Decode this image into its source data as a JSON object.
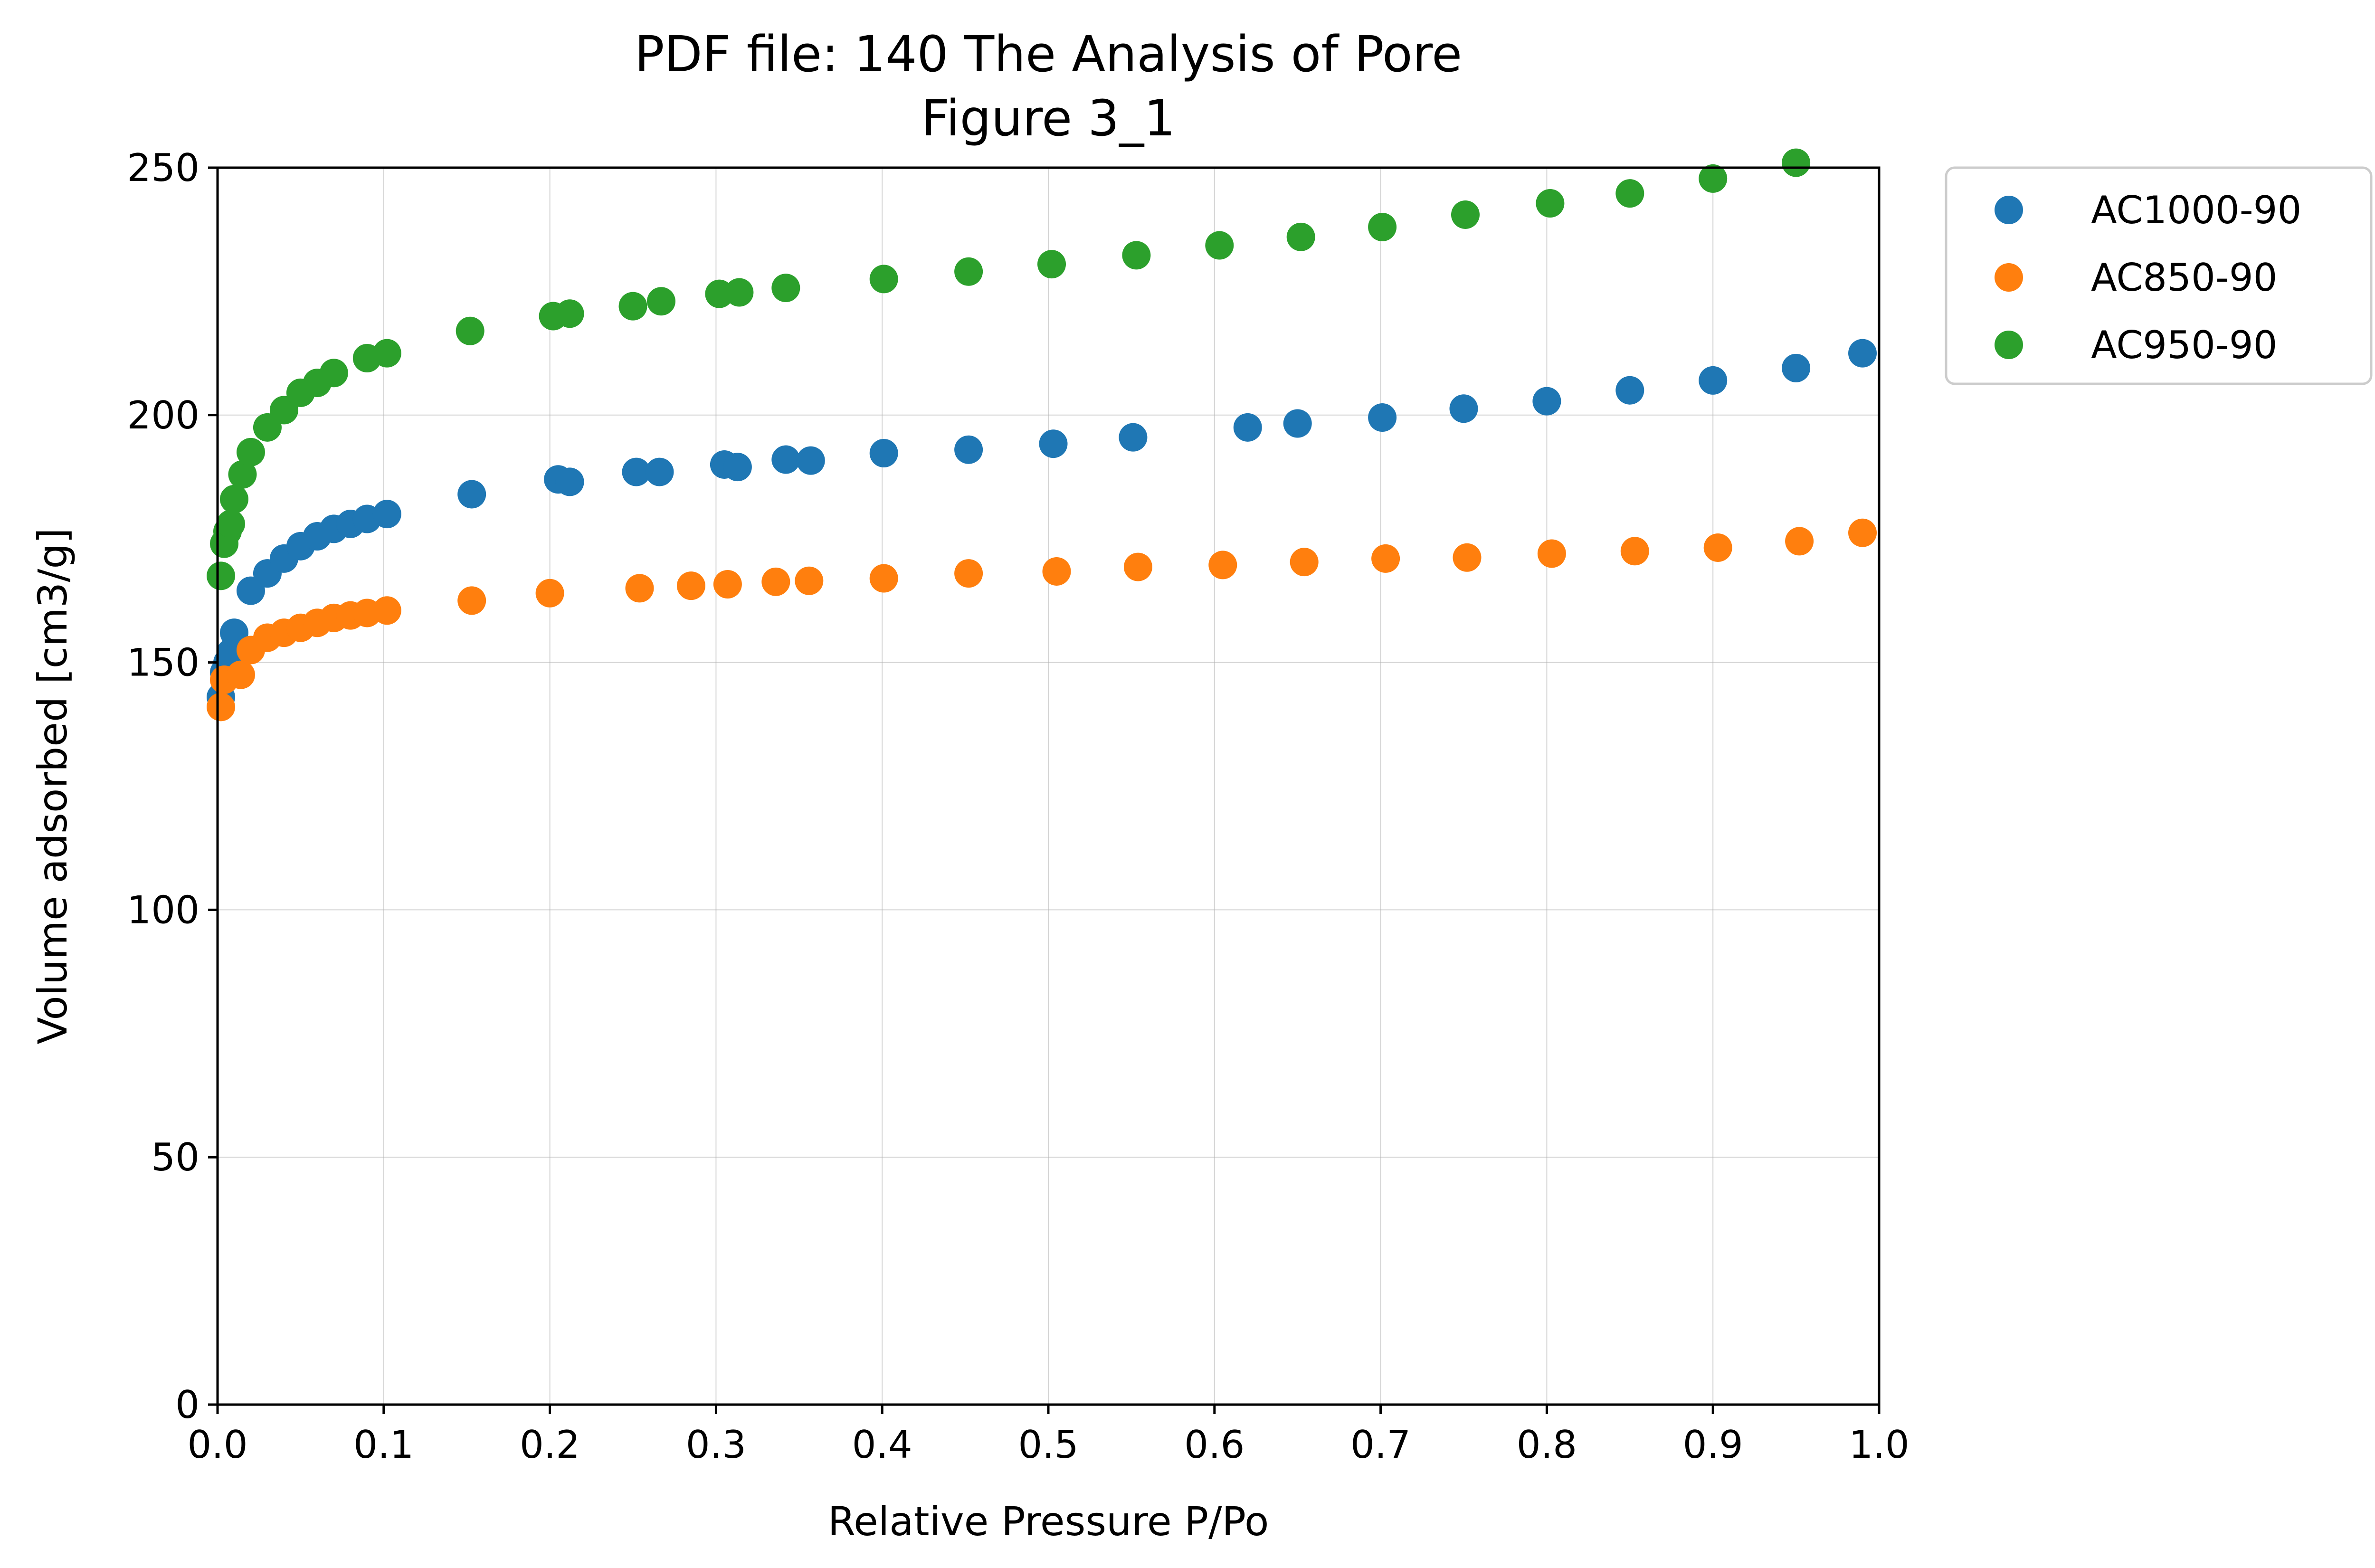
{
  "chart_data": {
    "type": "scatter",
    "title": "PDF file: 140 The Analysis of Pore",
    "subtitle": "Figure 3_1",
    "xlabel": "Relative Pressure P/Po",
    "ylabel": "Volume adsorbed [cm3/g]",
    "xlim": [
      0.0,
      1.0
    ],
    "ylim": [
      0,
      250
    ],
    "xticks": [
      "0.0",
      "0.1",
      "0.2",
      "0.3",
      "0.4",
      "0.5",
      "0.6",
      "0.7",
      "0.8",
      "0.9",
      "1.0"
    ],
    "yticks": [
      "0",
      "50",
      "100",
      "150",
      "200",
      "250"
    ],
    "grid": true,
    "legend_position": "outside-top-right",
    "series": [
      {
        "name": "AC1000-90",
        "color": "#1f77b4",
        "x": [
          0.002,
          0.004,
          0.006,
          0.008,
          0.01,
          0.02,
          0.03,
          0.04,
          0.05,
          0.06,
          0.07,
          0.08,
          0.09,
          0.102,
          0.153,
          0.205,
          0.212,
          0.252,
          0.266,
          0.305,
          0.313,
          0.342,
          0.357,
          0.401,
          0.452,
          0.503,
          0.551,
          0.62,
          0.65,
          0.701,
          0.75,
          0.8,
          0.85,
          0.9,
          0.95,
          0.99
        ],
        "y": [
          143,
          148,
          150,
          152,
          156,
          164.5,
          168,
          171,
          173.5,
          175.5,
          177,
          178,
          179,
          180,
          184,
          187,
          186.5,
          188.5,
          188.5,
          190,
          189.5,
          191,
          190.8,
          192.3,
          193,
          194.2,
          195.5,
          197.5,
          198.3,
          199.5,
          201.3,
          202.8,
          205,
          207,
          209.5,
          212.5
        ]
      },
      {
        "name": "AC850-90",
        "color": "#ff7f0e",
        "x": [
          0.002,
          0.004,
          0.014,
          0.02,
          0.03,
          0.04,
          0.05,
          0.06,
          0.07,
          0.08,
          0.09,
          0.102,
          0.153,
          0.2,
          0.254,
          0.285,
          0.307,
          0.336,
          0.356,
          0.401,
          0.452,
          0.505,
          0.554,
          0.605,
          0.654,
          0.703,
          0.752,
          0.803,
          0.853,
          0.903,
          0.952,
          0.99
        ],
        "y": [
          141,
          146.5,
          147.5,
          152.5,
          155,
          156,
          157,
          158,
          159,
          159.5,
          160,
          160.5,
          162.5,
          164,
          165,
          165.5,
          165.8,
          166.3,
          166.5,
          167,
          168,
          168.4,
          169.3,
          169.7,
          170.3,
          171,
          171.2,
          172,
          172.5,
          173.2,
          174.5,
          176.2
        ]
      },
      {
        "name": "AC950-90",
        "color": "#2ca02c",
        "x": [
          0.002,
          0.004,
          0.006,
          0.008,
          0.01,
          0.015,
          0.02,
          0.03,
          0.04,
          0.05,
          0.06,
          0.07,
          0.09,
          0.102,
          0.152,
          0.202,
          0.212,
          0.25,
          0.267,
          0.302,
          0.314,
          0.342,
          0.401,
          0.452,
          0.502,
          0.553,
          0.603,
          0.652,
          0.701,
          0.751,
          0.802,
          0.85,
          0.9,
          0.95
        ],
        "y": [
          167.5,
          174,
          176.5,
          178,
          183,
          188,
          192.5,
          197.5,
          201,
          204.5,
          206.5,
          208.5,
          211.5,
          212.5,
          217,
          220,
          220.5,
          222,
          223,
          224.5,
          224.8,
          225.7,
          227.5,
          229,
          230.5,
          232.3,
          234.3,
          236,
          238,
          240.5,
          242.8,
          244.8,
          247.8,
          251
        ]
      }
    ]
  }
}
